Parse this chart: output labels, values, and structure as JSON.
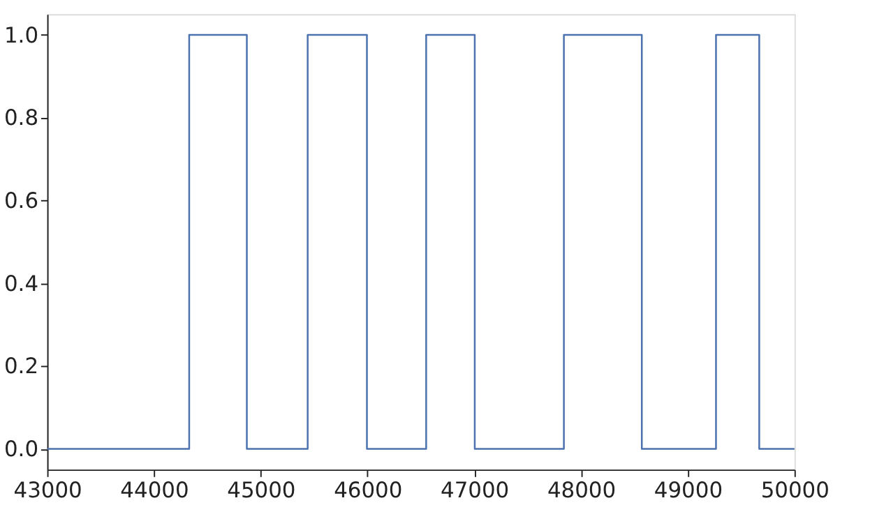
{
  "chart_data": {
    "type": "step",
    "x": [
      43000,
      44330,
      44870,
      45440,
      45995,
      46550,
      47005,
      47840,
      48570,
      49265,
      49670,
      50000
    ],
    "series": [
      {
        "color": "#4c72b0",
        "values": [
          0,
          1,
          0,
          1,
          0,
          1,
          0,
          1,
          0,
          1,
          0,
          0
        ]
      }
    ],
    "xlim": [
      43000,
      50000
    ],
    "ylim": [
      -0.05,
      1.05
    ],
    "xticks": [
      43000,
      44000,
      45000,
      46000,
      47000,
      48000,
      49000,
      50000
    ],
    "yticks": [
      {
        "value": 0,
        "label": "0.0"
      },
      {
        "value": 0.2,
        "label": "0.2"
      },
      {
        "value": 0.4,
        "label": "0.4"
      },
      {
        "value": 0.6,
        "label": "0.6"
      },
      {
        "value": 0.8,
        "label": "0.8"
      },
      {
        "value": 1,
        "label": "1.0"
      }
    ],
    "grid": false,
    "marker": "none",
    "line_style": "solid"
  }
}
